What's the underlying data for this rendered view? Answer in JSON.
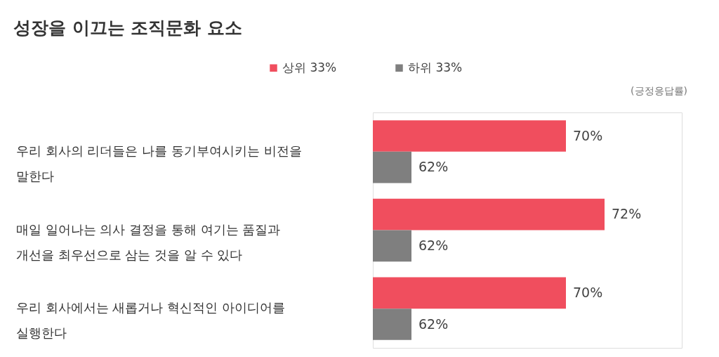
{
  "chart_data": {
    "type": "bar",
    "orientation": "horizontal",
    "title": "성장을 이끄는 조직문화 요소",
    "categories": [
      "우리 회사의 리더들은 나를 동기부여시키는 비전을 말한다",
      "매일 일어나는 의사 결정을 통해 여기는 품질과 개선을 최우선으로 삼는 것을 알 수 있다",
      "우리 회사에서는 새롭거나 혁신적인 아이디어를 실행한다"
    ],
    "series": [
      {
        "name": "상위 33%",
        "color": "#f04e5e",
        "values": [
          70,
          72,
          70
        ],
        "value_labels": [
          "70%",
          "72%",
          "70%"
        ]
      },
      {
        "name": "하위 33%",
        "color": "#7f7f7f",
        "values": [
          62,
          62,
          62
        ],
        "value_labels": [
          "62%",
          "62%",
          "62%"
        ]
      }
    ],
    "xlim": [
      60,
      76
    ],
    "legend": "top",
    "tick_labels": "y",
    "grid": false,
    "annotations": [
      "(긍정응답률)"
    ]
  }
}
